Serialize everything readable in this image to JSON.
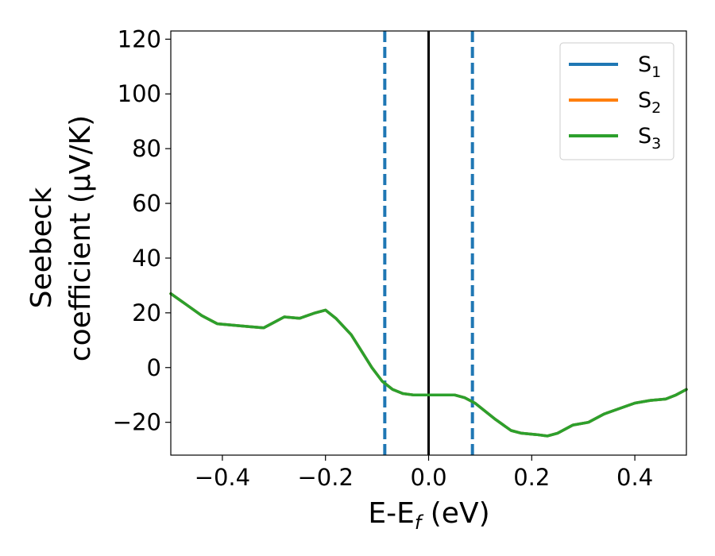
{
  "chart_data": {
    "type": "line",
    "xlabel": {
      "main": "E-E",
      "sub": "f",
      "unit": " (eV)"
    },
    "ylabel": {
      "line1": "Seebeck",
      "line2": "coefficient  (μV/K)"
    },
    "xlim": [
      -0.5,
      0.5
    ],
    "ylim": [
      -32,
      123
    ],
    "x_ticks": [
      -0.4,
      -0.2,
      0.0,
      0.2,
      0.4
    ],
    "x_tick_labels": [
      "−0.4",
      "−0.2",
      "0.0",
      "0.2",
      "0.4"
    ],
    "y_ticks": [
      -20,
      0,
      20,
      40,
      60,
      80,
      100,
      120
    ],
    "y_tick_labels": [
      "−20",
      "0",
      "20",
      "40",
      "60",
      "80",
      "100",
      "120"
    ],
    "legend_position": "top-right",
    "series": [
      {
        "name": "S",
        "sub": "1",
        "color": "#1f77b4"
      },
      {
        "name": "S",
        "sub": "2",
        "color": "#ff7f0e"
      },
      {
        "name": "S",
        "sub": "3",
        "color": "#2ca02c"
      }
    ],
    "line_points": {
      "x": [
        -0.5,
        -0.47,
        -0.44,
        -0.41,
        -0.38,
        -0.35,
        -0.32,
        -0.3,
        -0.28,
        -0.25,
        -0.22,
        -0.2,
        -0.18,
        -0.15,
        -0.13,
        -0.11,
        -0.09,
        -0.07,
        -0.05,
        -0.03,
        -0.01,
        0.0,
        0.02,
        0.05,
        0.07,
        0.09,
        0.11,
        0.13,
        0.16,
        0.18,
        0.21,
        0.23,
        0.25,
        0.28,
        0.31,
        0.34,
        0.37,
        0.4,
        0.43,
        0.46,
        0.48,
        0.5
      ],
      "y": [
        27,
        23,
        19,
        16,
        15.5,
        15,
        14.5,
        16.5,
        18.5,
        18,
        20,
        21,
        18,
        12,
        6,
        0,
        -5,
        -8,
        -9.5,
        -10,
        -10,
        -10,
        -10,
        -10,
        -11,
        -13,
        -16,
        -19,
        -23,
        -24,
        -24.5,
        -25,
        -24,
        -21,
        -20,
        -17,
        -15,
        -13,
        -12,
        -11.5,
        -10,
        -8
      ]
    },
    "vlines": [
      {
        "x": -0.085,
        "style": "dashed",
        "color": "#1f77b4"
      },
      {
        "x": 0.0,
        "style": "solid",
        "color": "#000000"
      },
      {
        "x": 0.085,
        "style": "dashed",
        "color": "#1f77b4"
      }
    ]
  }
}
